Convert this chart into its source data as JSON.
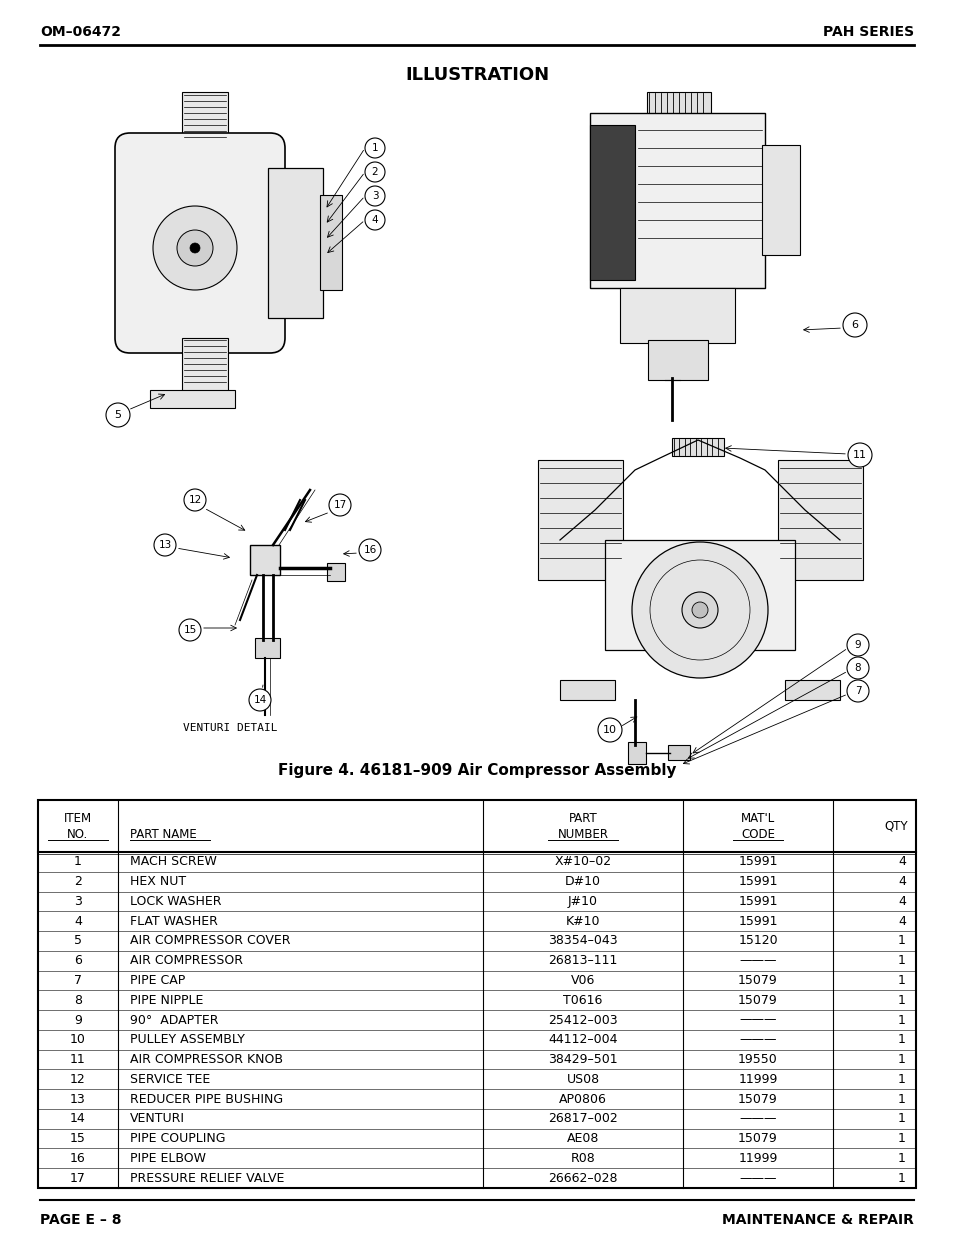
{
  "header_left": "OM–06472",
  "header_right": "PAH SERIES",
  "illustration_title": "ILLUSTRATION",
  "figure_caption": "Figure 4. 46181–909 Air Compressor Assembly",
  "footer_left": "PAGE E – 8",
  "footer_right": "MAINTENANCE & REPAIR",
  "table_rows": [
    [
      "1",
      "MACH SCREW",
      "X#10–02",
      "15991",
      "4"
    ],
    [
      "2",
      "HEX NUT",
      "D#10",
      "15991",
      "4"
    ],
    [
      "3",
      "LOCK WASHER",
      "J#10",
      "15991",
      "4"
    ],
    [
      "4",
      "FLAT WASHER",
      "K#10",
      "15991",
      "4"
    ],
    [
      "5",
      "AIR COMPRESSOR COVER",
      "38354–043",
      "15120",
      "1"
    ],
    [
      "6",
      "AIR COMPRESSOR",
      "26813–111",
      "———",
      "1"
    ],
    [
      "7",
      "PIPE CAP",
      "V06",
      "15079",
      "1"
    ],
    [
      "8",
      "PIPE NIPPLE",
      "T0616",
      "15079",
      "1"
    ],
    [
      "9",
      "90°  ADAPTER",
      "25412–003",
      "———",
      "1"
    ],
    [
      "10",
      "PULLEY ASSEMBLY",
      "44112–004",
      "———",
      "1"
    ],
    [
      "11",
      "AIR COMPRESSOR KNOB",
      "38429–501",
      "19550",
      "1"
    ],
    [
      "12",
      "SERVICE TEE",
      "US08",
      "11999",
      "1"
    ],
    [
      "13",
      "REDUCER PIPE BUSHING",
      "AP0806",
      "15079",
      "1"
    ],
    [
      "14",
      "VENTURI",
      "26817–002",
      "———",
      "1"
    ],
    [
      "15",
      "PIPE COUPLING",
      "AE08",
      "15079",
      "1"
    ],
    [
      "16",
      "PIPE ELBOW",
      "R08",
      "11999",
      "1"
    ],
    [
      "17",
      "PRESSURE RELIEF VALVE",
      "26662–028",
      "———",
      "1"
    ]
  ],
  "bg_color": "#ffffff",
  "text_color": "#000000"
}
